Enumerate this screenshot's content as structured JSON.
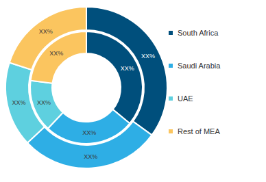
{
  "chart_data": {
    "type": "donut",
    "categories": [
      "South Africa",
      "Saudi Arabia",
      "UAE",
      "Rest of MEA"
    ],
    "colors": [
      "#004f7c",
      "#2eaee5",
      "#5ed0df",
      "#fbc55f"
    ],
    "series": [
      {
        "values": [
          36,
          26,
          15,
          23
        ],
        "value_labels": [
          "XX%",
          "XX%",
          "XX%",
          "XX%"
        ]
      },
      {
        "values": [
          35,
          28,
          17,
          20
        ],
        "value_labels": [
          "XX%",
          "XX%",
          "XX%",
          "XX%"
        ]
      }
    ],
    "legend": "right",
    "data_labels": true
  }
}
